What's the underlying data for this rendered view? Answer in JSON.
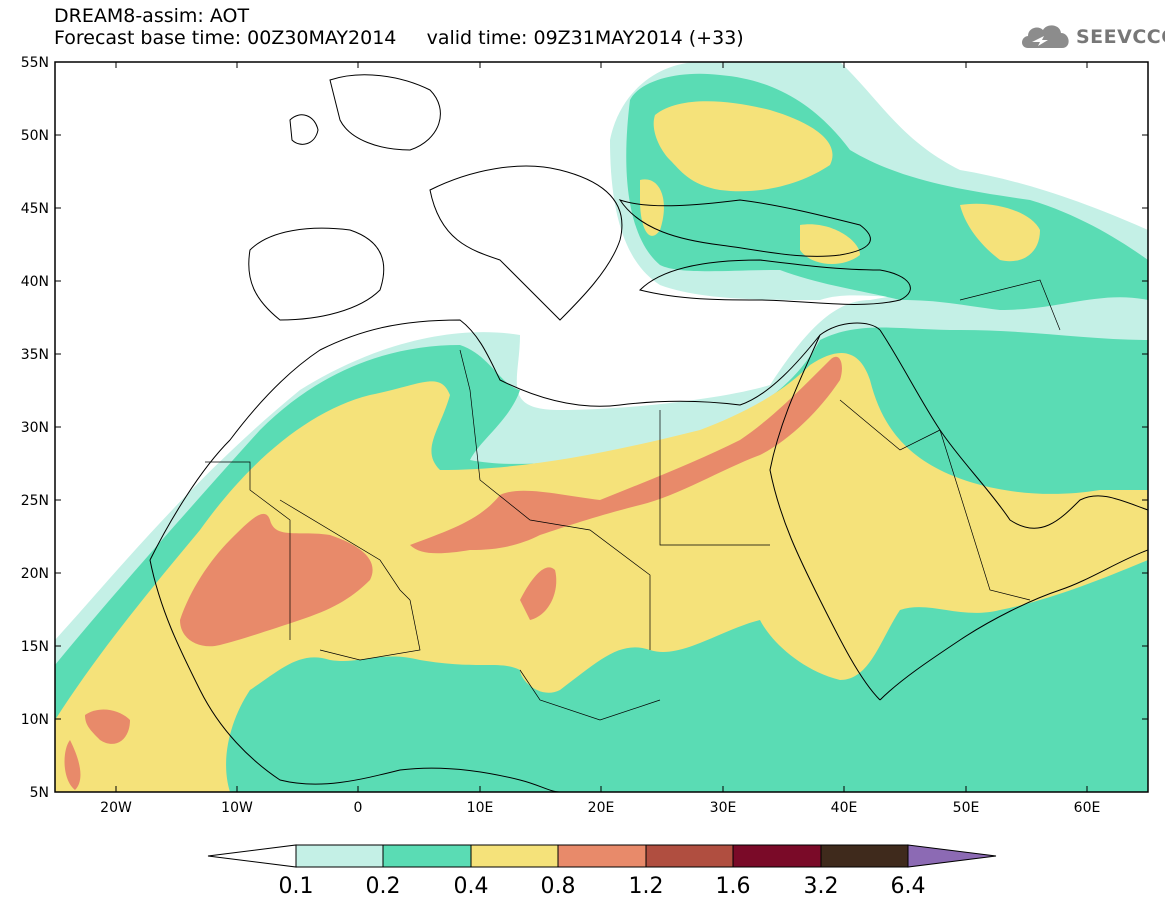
{
  "header": {
    "title_line1": "DREAM8-assim: AOT",
    "title_line2": "Forecast base time: 00Z30MAY2014     valid time: 09Z31MAY2014 (+33)",
    "logo_text": "SEEVCCC"
  },
  "map": {
    "lon_range": [
      -25,
      65
    ],
    "lat_range": [
      5,
      55
    ],
    "lat_labels": [
      "5N",
      "10N",
      "15N",
      "20N",
      "25N",
      "30N",
      "35N",
      "40N",
      "45N",
      "50N",
      "55N"
    ],
    "lon_labels": [
      "20W",
      "10W",
      "0",
      "10E",
      "20E",
      "30E",
      "40E",
      "50E",
      "60E"
    ]
  },
  "colorbar": {
    "levels": [
      "0.1",
      "0.2",
      "0.4",
      "0.8",
      "1.2",
      "1.6",
      "3.2",
      "6.4"
    ],
    "colors": [
      "#c4f0e6",
      "#5adcb4",
      "#f5e27a",
      "#e88a6a",
      "#b04e40",
      "#7a0a28",
      "#3f2a1c"
    ],
    "under_color": "#ffffff",
    "over_color": "#8c6ab4"
  },
  "colors": {
    "aot_0_1": "#c4f0e6",
    "aot_0_2": "#5adcb4",
    "aot_0_4": "#f5e27a",
    "aot_0_8": "#e88a6a",
    "aot_1_2": "#b04e40"
  }
}
